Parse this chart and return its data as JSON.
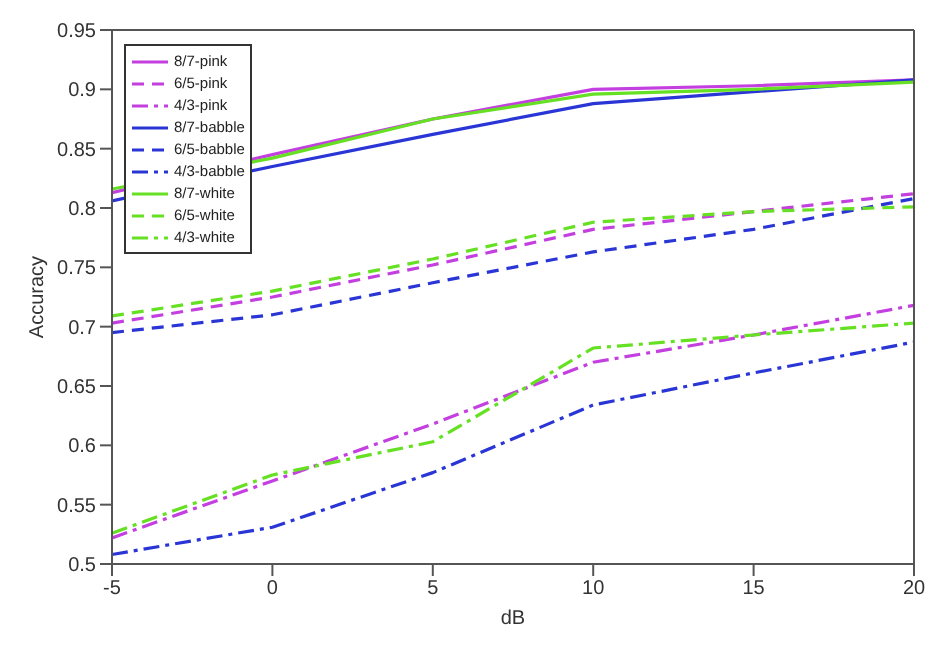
{
  "chart_data": {
    "type": "line",
    "xlabel": "dB",
    "ylabel": "Accuracy",
    "x": [
      -5,
      0,
      5,
      10,
      15,
      20
    ],
    "xlim": [
      -5,
      20
    ],
    "xticks": [
      -5,
      0,
      5,
      10,
      15,
      20
    ],
    "ylim": [
      0.5,
      0.95
    ],
    "yticks": [
      0.5,
      0.55,
      0.6,
      0.65,
      0.7,
      0.75,
      0.8,
      0.85,
      0.9,
      0.95
    ],
    "grid": false,
    "legend": "top left",
    "marker": "none",
    "series": [
      {
        "name": "8/7-pink",
        "color": "#c43fe0",
        "line_style": "solid",
        "values": [
          0.813,
          0.845,
          0.875,
          0.9,
          0.903,
          0.908
        ]
      },
      {
        "name": "6/5-pink",
        "color": "#c43fe0",
        "line_style": "dashed",
        "values": [
          0.703,
          0.725,
          0.752,
          0.782,
          0.797,
          0.812
        ]
      },
      {
        "name": "4/3-pink",
        "color": "#c43fe0",
        "line_style": "dashdot",
        "values": [
          0.522,
          0.57,
          0.618,
          0.67,
          0.693,
          0.718
        ]
      },
      {
        "name": "8/7-babble",
        "color": "#2a35d6",
        "line_style": "solid",
        "values": [
          0.806,
          0.835,
          0.862,
          0.888,
          0.898,
          0.908
        ]
      },
      {
        "name": "6/5-babble",
        "color": "#2a35d6",
        "line_style": "dashed",
        "values": [
          0.695,
          0.71,
          0.737,
          0.763,
          0.782,
          0.808
        ]
      },
      {
        "name": "4/3-babble",
        "color": "#2a35d6",
        "line_style": "dashdot",
        "values": [
          0.508,
          0.531,
          0.577,
          0.634,
          0.661,
          0.687
        ]
      },
      {
        "name": "8/7-white",
        "color": "#66e022",
        "line_style": "solid",
        "values": [
          0.816,
          0.842,
          0.875,
          0.896,
          0.9,
          0.906
        ]
      },
      {
        "name": "6/5-white",
        "color": "#66e022",
        "line_style": "dashed",
        "values": [
          0.709,
          0.73,
          0.757,
          0.788,
          0.797,
          0.801
        ]
      },
      {
        "name": "4/3-white",
        "color": "#66e022",
        "line_style": "dashdot",
        "values": [
          0.526,
          0.575,
          0.603,
          0.682,
          0.693,
          0.703
        ]
      }
    ]
  }
}
